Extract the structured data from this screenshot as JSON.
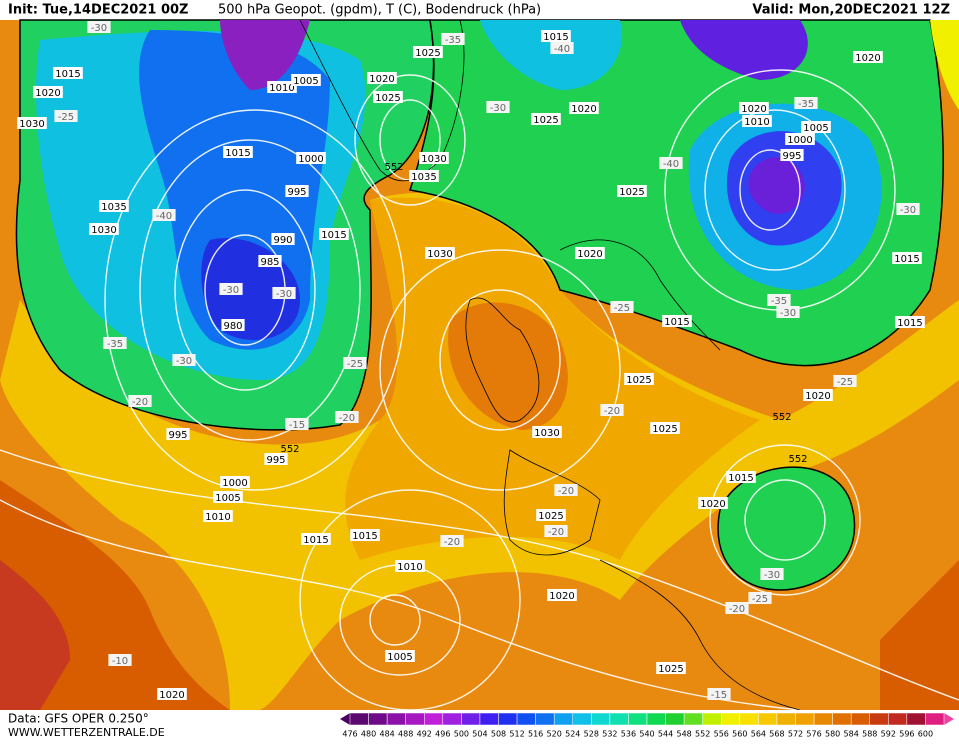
{
  "header": {
    "init": "Init: Tue,14DEC2021 00Z",
    "title": "500 hPa Geopot. (gpdm), T (C), Bodendruck (hPa)",
    "valid": "Valid: Mon,20DEC2021 12Z"
  },
  "footer": {
    "data": "Data: GFS OPER 0.250°",
    "url": "WWW.WETTERZENTRALE.DE"
  },
  "isobar_labels": [
    "1015",
    "1020",
    "1030",
    "1010",
    "1005",
    "1025",
    "1020",
    "1025",
    "1015",
    "1020",
    "1025",
    "1020",
    "1020",
    "1010",
    "1005",
    "1000",
    "995",
    "1015",
    "1000",
    "1030",
    "1035",
    "995",
    "1035",
    "1030",
    "1015",
    "990",
    "985",
    "1030",
    "1025",
    "1020",
    "1015",
    "980",
    "1015",
    "1015",
    "1025",
    "1020",
    "995",
    "995",
    "1030",
    "1025",
    "1015",
    "1000",
    "1005",
    "1010",
    "1020",
    "1025",
    "1015",
    "1015",
    "1010",
    "1020",
    "1005",
    "1025",
    "1020"
  ],
  "temperature_labels": [
    "-30",
    "-35",
    "-40",
    "-25",
    "-30",
    "-35",
    "-40",
    "-30",
    "-30",
    "-40",
    "-30",
    "-35",
    "-30",
    "-25",
    "-25",
    "-35",
    "-30",
    "-20",
    "-20",
    "-15",
    "-20",
    "-25",
    "-20",
    "-20",
    "-20",
    "-30",
    "-25",
    "-20",
    "-10",
    "-15"
  ],
  "contour_labels": [
    "552",
    "552",
    "552",
    "552"
  ],
  "colorbar": {
    "labels": [
      476,
      480,
      484,
      488,
      492,
      496,
      500,
      504,
      508,
      512,
      516,
      520,
      524,
      528,
      532,
      536,
      540,
      544,
      548,
      552,
      556,
      560,
      564,
      568,
      572,
      576,
      580,
      584,
      588,
      592,
      596,
      600
    ],
    "colors": [
      "#5a0a6e",
      "#6e0a88",
      "#8a10a8",
      "#a818c0",
      "#c020d8",
      "#a020e0",
      "#7020e8",
      "#4020f0",
      "#2030f0",
      "#1050f0",
      "#1070f0",
      "#10a0f0",
      "#10c0e8",
      "#10d8d0",
      "#10e0b0",
      "#10e080",
      "#10d850",
      "#20d030",
      "#60e020",
      "#c0f000",
      "#f0f000",
      "#f8e000",
      "#f8c800",
      "#f0b000",
      "#f0a000",
      "#e88800",
      "#e07000",
      "#d85c00",
      "#c83a10",
      "#c02a20",
      "#a01030",
      "#e02080"
    ]
  }
}
